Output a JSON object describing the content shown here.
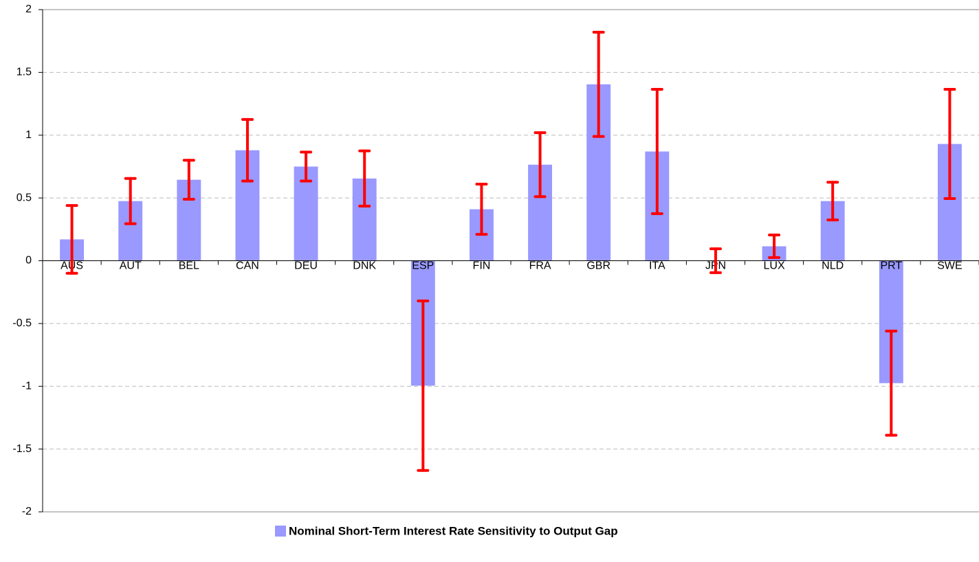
{
  "chart_data": {
    "type": "bar",
    "categories": [
      "AUS",
      "AUT",
      "BEL",
      "CAN",
      "DEU",
      "DNK",
      "ESP",
      "FIN",
      "FRA",
      "GBR",
      "ITA",
      "JPN",
      "LUX",
      "NLD",
      "PRT",
      "SWE"
    ],
    "series": [
      {
        "name": "Nominal Short-Term Interest Rate Sensitivity to Output Gap",
        "color": "#9999ff",
        "values": [
          0.17,
          0.475,
          0.645,
          0.88,
          0.75,
          0.655,
          -0.995,
          0.41,
          0.765,
          1.405,
          0.87,
          0.0,
          0.115,
          0.475,
          -0.975,
          0.93
        ],
        "errors": [
          0.27,
          0.18,
          0.155,
          0.245,
          0.115,
          0.22,
          0.675,
          0.2,
          0.255,
          0.415,
          0.495,
          0.095,
          0.09,
          0.15,
          0.415,
          0.435
        ],
        "error_color": "#ff0000"
      }
    ],
    "ylim": [
      -2,
      2
    ],
    "yticks": [
      -2,
      -1.5,
      -1,
      -0.5,
      0,
      0.5,
      1,
      1.5,
      2
    ],
    "grid": true,
    "legend": "bottom"
  }
}
